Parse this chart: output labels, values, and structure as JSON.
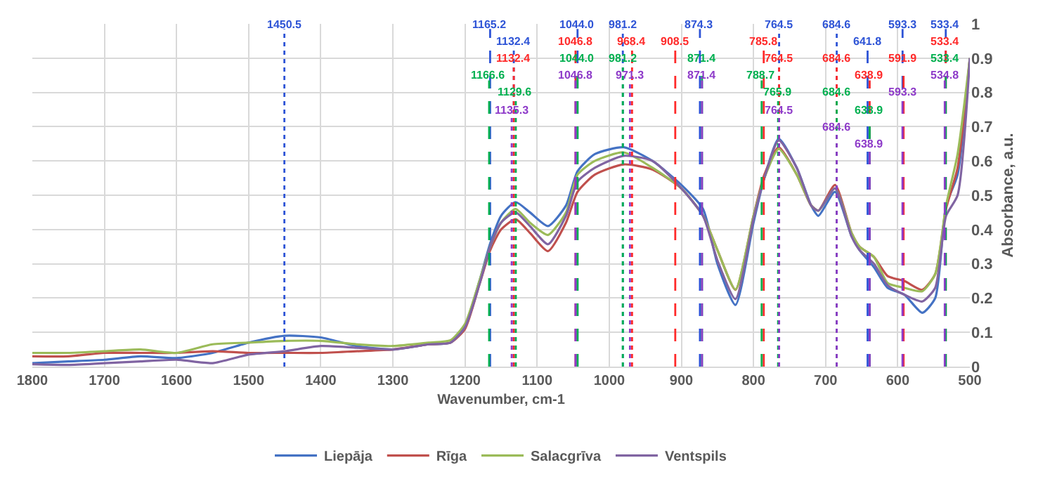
{
  "chart_data": {
    "type": "line",
    "xlabel": "Wavenumber, cm-1",
    "ylabel": "Absorbance, a.u.",
    "x": [
      1800,
      1750,
      1700,
      1650,
      1600,
      1550,
      1500,
      1450,
      1400,
      1350,
      1300,
      1250,
      1220,
      1200,
      1180,
      1165,
      1150,
      1130,
      1110,
      1085,
      1060,
      1044,
      1020,
      980,
      940,
      900,
      870,
      850,
      825,
      800,
      785,
      765,
      740,
      720,
      710,
      687,
      664,
      653,
      633,
      614,
      591,
      566,
      548,
      533,
      517,
      500
    ],
    "series": [
      {
        "name": "Liepāja",
        "color": "#4472c4",
        "values": [
          0.01,
          0.015,
          0.02,
          0.03,
          0.025,
          0.04,
          0.07,
          0.09,
          0.085,
          0.06,
          0.05,
          0.065,
          0.07,
          0.12,
          0.25,
          0.36,
          0.44,
          0.48,
          0.45,
          0.41,
          0.47,
          0.57,
          0.62,
          0.64,
          0.6,
          0.53,
          0.46,
          0.3,
          0.18,
          0.42,
          0.55,
          0.665,
          0.58,
          0.47,
          0.44,
          0.51,
          0.38,
          0.34,
          0.29,
          0.23,
          0.21,
          0.157,
          0.2,
          0.47,
          0.56,
          0.9
        ]
      },
      {
        "name": "Rīga",
        "color": "#c0504d",
        "values": [
          0.03,
          0.03,
          0.04,
          0.04,
          0.04,
          0.045,
          0.04,
          0.04,
          0.04,
          0.045,
          0.05,
          0.065,
          0.07,
          0.11,
          0.24,
          0.34,
          0.4,
          0.43,
          0.39,
          0.337,
          0.42,
          0.51,
          0.56,
          0.59,
          0.575,
          0.52,
          0.44,
          0.34,
          0.224,
          0.44,
          0.56,
          0.64,
          0.56,
          0.47,
          0.455,
          0.53,
          0.39,
          0.35,
          0.32,
          0.264,
          0.25,
          0.224,
          0.27,
          0.46,
          0.58,
          0.9
        ]
      },
      {
        "name": "Salacgrīva",
        "color": "#9bbb59",
        "values": [
          0.04,
          0.04,
          0.045,
          0.05,
          0.04,
          0.065,
          0.07,
          0.075,
          0.075,
          0.065,
          0.06,
          0.07,
          0.077,
          0.125,
          0.25,
          0.35,
          0.42,
          0.46,
          0.42,
          0.384,
          0.45,
          0.56,
          0.6,
          0.625,
          0.58,
          0.52,
          0.44,
          0.34,
          0.225,
          0.44,
          0.55,
          0.635,
          0.56,
          0.47,
          0.455,
          0.52,
          0.39,
          0.35,
          0.32,
          0.244,
          0.23,
          0.22,
          0.27,
          0.47,
          0.62,
          0.9
        ]
      },
      {
        "name": "Ventspils",
        "color": "#8064a2",
        "values": [
          0.007,
          0.005,
          0.01,
          0.015,
          0.02,
          0.01,
          0.035,
          0.045,
          0.06,
          0.055,
          0.05,
          0.065,
          0.07,
          0.115,
          0.24,
          0.35,
          0.42,
          0.45,
          0.41,
          0.357,
          0.44,
          0.54,
          0.58,
          0.615,
          0.6,
          0.52,
          0.44,
          0.31,
          0.197,
          0.43,
          0.55,
          0.66,
          0.58,
          0.47,
          0.455,
          0.52,
          0.38,
          0.34,
          0.3,
          0.237,
          0.21,
          0.19,
          0.23,
          0.44,
          0.5,
          0.9
        ]
      }
    ],
    "xlim": [
      1800,
      500
    ],
    "xticks": [
      1800,
      1700,
      1600,
      1500,
      1400,
      1300,
      1200,
      1100,
      1000,
      900,
      800,
      700,
      600,
      500
    ],
    "ylim": [
      0,
      1
    ],
    "yticks": [
      0,
      0.1,
      0.2,
      0.3,
      0.4,
      0.5,
      0.6,
      0.7,
      0.8,
      0.9,
      1
    ],
    "grid": true,
    "legend": "bottom",
    "ref_lines": [
      {
        "axis": "x",
        "value": 1450.5,
        "label": "1450.5",
        "color": "#2e54d6",
        "line_style": "dotted"
      },
      {
        "axis": "x",
        "value": 1165.2,
        "label": "1165.2",
        "color": "#2e54d6",
        "line_style": "dashed"
      },
      {
        "axis": "x",
        "value": 1132.4,
        "label": "1132.4",
        "color": "#2e54d6",
        "line_style": "dotted"
      },
      {
        "axis": "x",
        "value": 1044.0,
        "label": "1044.0",
        "color": "#2e54d6",
        "line_style": "dashed"
      },
      {
        "axis": "x",
        "value": 981.2,
        "label": "981.2",
        "color": "#2e54d6",
        "line_style": "dotted"
      },
      {
        "axis": "x",
        "value": 874.3,
        "label": "874.3",
        "color": "#2e54d6",
        "line_style": "dashed"
      },
      {
        "axis": "x",
        "value": 764.5,
        "label": "764.5",
        "color": "#2e54d6",
        "line_style": "dotted"
      },
      {
        "axis": "x",
        "value": 684.6,
        "label": "684.6",
        "color": "#2e54d6",
        "line_style": "dotted"
      },
      {
        "axis": "x",
        "value": 641.8,
        "label": "641.8",
        "color": "#2e54d6",
        "line_style": "dashed"
      },
      {
        "axis": "x",
        "value": 593.3,
        "label": "593.3",
        "color": "#2e54d6",
        "line_style": "dashed"
      },
      {
        "axis": "x",
        "value": 533.4,
        "label": "533.4",
        "color": "#2e54d6",
        "line_style": "dashed"
      },
      {
        "axis": "x",
        "value": 1132.4,
        "label": "1132.4",
        "color": "#ff2a2a",
        "line_style": "dotted"
      },
      {
        "axis": "x",
        "value": 1046.8,
        "label": "1046.8",
        "color": "#ff2a2a",
        "line_style": "dashed"
      },
      {
        "axis": "x",
        "value": 968.4,
        "label": "968.4",
        "color": "#ff2a2a",
        "line_style": "dotted"
      },
      {
        "axis": "x",
        "value": 908.5,
        "label": "908.5",
        "color": "#ff2a2a",
        "line_style": "dashed"
      },
      {
        "axis": "x",
        "value": 785.8,
        "label": "785.8",
        "color": "#ff2a2a",
        "line_style": "dashed"
      },
      {
        "axis": "x",
        "value": 764.5,
        "label": "764.5",
        "color": "#ff2a2a",
        "line_style": "dotted"
      },
      {
        "axis": "x",
        "value": 684.6,
        "label": "684.6",
        "color": "#ff2a2a",
        "line_style": "dotted"
      },
      {
        "axis": "x",
        "value": 638.9,
        "label": "638.9",
        "color": "#ff2a2a",
        "line_style": "dashed"
      },
      {
        "axis": "x",
        "value": 591.9,
        "label": "591.9",
        "color": "#ff2a2a",
        "line_style": "dashed"
      },
      {
        "axis": "x",
        "value": 533.4,
        "label": "533.4",
        "color": "#ff2a2a",
        "line_style": "dashed"
      },
      {
        "axis": "x",
        "value": 1166.6,
        "label": "1166.6",
        "color": "#00b050",
        "line_style": "dashed"
      },
      {
        "axis": "x",
        "value": 1129.6,
        "label": "1129.6",
        "color": "#00b050",
        "line_style": "dotted"
      },
      {
        "axis": "x",
        "value": 1044.0,
        "label": "1044.0",
        "color": "#00b050",
        "line_style": "dashed"
      },
      {
        "axis": "x",
        "value": 981.2,
        "label": "981.2",
        "color": "#00b050",
        "line_style": "dotted"
      },
      {
        "axis": "x",
        "value": 871.4,
        "label": "871.4",
        "color": "#00b050",
        "line_style": "dashed"
      },
      {
        "axis": "x",
        "value": 788.7,
        "label": "788.7",
        "color": "#00b050",
        "line_style": "dashed"
      },
      {
        "axis": "x",
        "value": 765.9,
        "label": "765.9",
        "color": "#00b050",
        "line_style": "dotted"
      },
      {
        "axis": "x",
        "value": 684.6,
        "label": "684.6",
        "color": "#00b050",
        "line_style": "dotted"
      },
      {
        "axis": "x",
        "value": 638.9,
        "label": "638.9",
        "color": "#00b050",
        "line_style": "dashed"
      },
      {
        "axis": "x",
        "value": 533.4,
        "label": "533.4",
        "color": "#00b050",
        "line_style": "dashed"
      },
      {
        "axis": "x",
        "value": 1135.3,
        "label": "1135.3",
        "color": "#8e3bc9",
        "line_style": "dotted"
      },
      {
        "axis": "x",
        "value": 1046.8,
        "label": "1046.8",
        "color": "#8e3bc9",
        "line_style": "dashed"
      },
      {
        "axis": "x",
        "value": 971.3,
        "label": "971.3",
        "color": "#8e3bc9",
        "line_style": "dotted"
      },
      {
        "axis": "x",
        "value": 871.4,
        "label": "871.4",
        "color": "#8e3bc9",
        "line_style": "dashed"
      },
      {
        "axis": "x",
        "value": 764.5,
        "label": "764.5",
        "color": "#8e3bc9",
        "line_style": "dotted"
      },
      {
        "axis": "x",
        "value": 684.6,
        "label": "684.6",
        "color": "#8e3bc9",
        "line_style": "dotted"
      },
      {
        "axis": "x",
        "value": 638.9,
        "label": "638.9",
        "color": "#8e3bc9",
        "line_style": "dashed"
      },
      {
        "axis": "x",
        "value": 593.3,
        "label": "593.3",
        "color": "#8e3bc9",
        "line_style": "dashed"
      },
      {
        "axis": "x",
        "value": 534.8,
        "label": "534.8",
        "color": "#8e3bc9",
        "line_style": "dashed"
      }
    ]
  }
}
